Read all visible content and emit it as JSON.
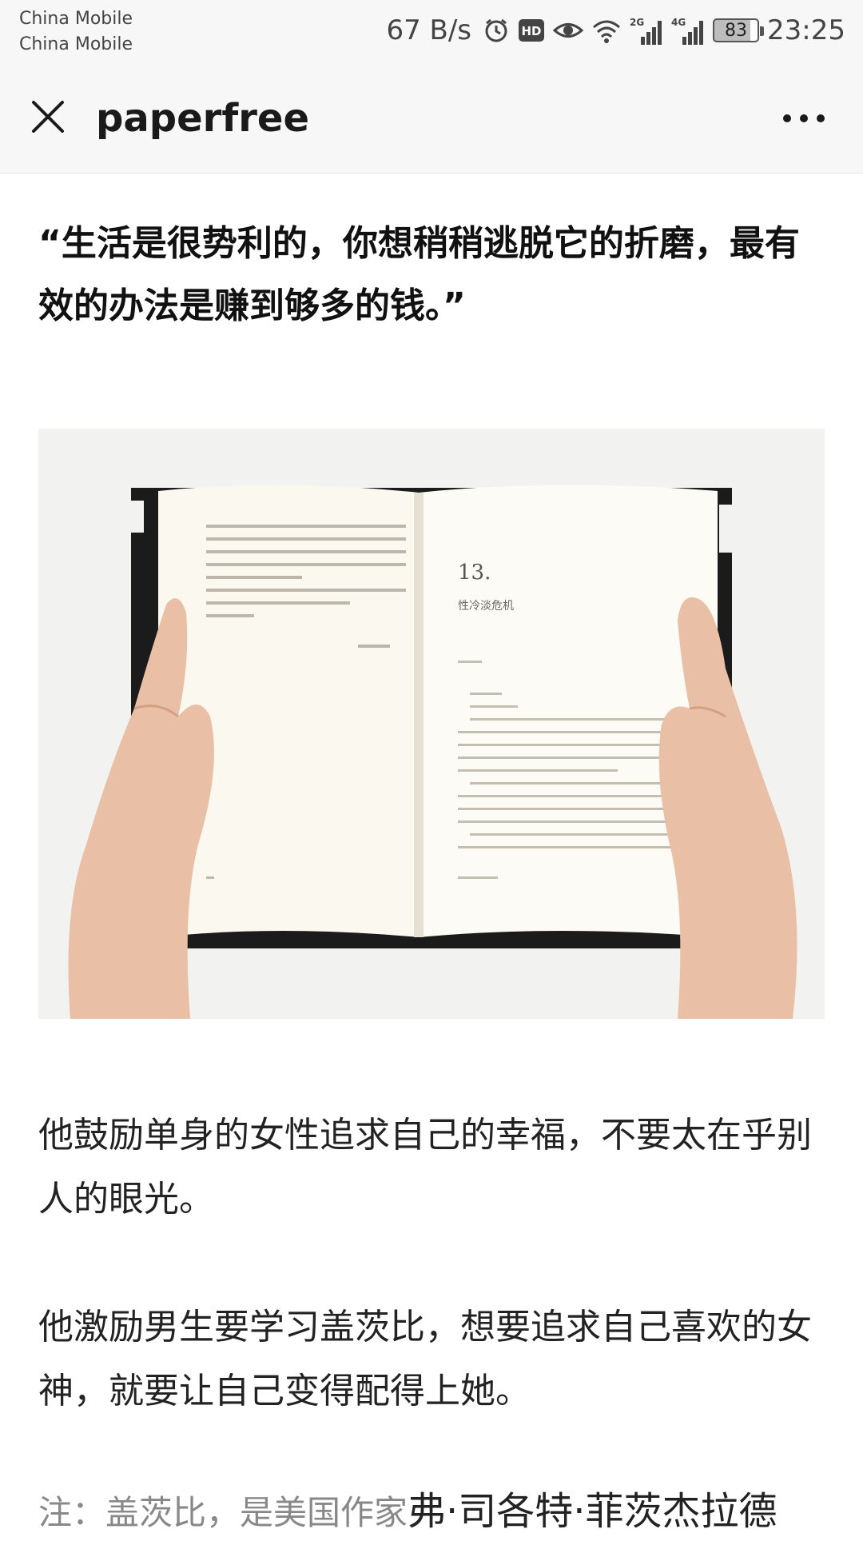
{
  "status_bar": {
    "carrier_1": "China Mobile",
    "carrier_2": "China Mobile",
    "net_speed": "67 B/s",
    "battery": "83",
    "time": "23:25",
    "icons": [
      "alarm-icon",
      "hd-icon",
      "eye-icon",
      "wifi-icon",
      "signal-2g-icon",
      "signal-4g-icon",
      "battery-icon"
    ]
  },
  "nav": {
    "title": "paperfree",
    "close_icon": "close-icon",
    "more_icon": "more-icon"
  },
  "article": {
    "quote": "“生活是很势利的，你想稍稍逃脱它的折磨，最有效的办法是赚到够多的钱。”",
    "image": {
      "page_number": "13.",
      "chapter_title": "性冷淡危机"
    },
    "paragraph_1": "他鼓励单身的女性追求自己的幸福，不要太在乎别人的眼光。",
    "paragraph_2": "他激励男生要学习盖茨比，想要追求自己喜欢的女神，就要让自己变得配得上她。",
    "note_prefix": "注：盖茨比，是美国作家",
    "note_name": "弗·司各特·菲茨杰拉德"
  }
}
